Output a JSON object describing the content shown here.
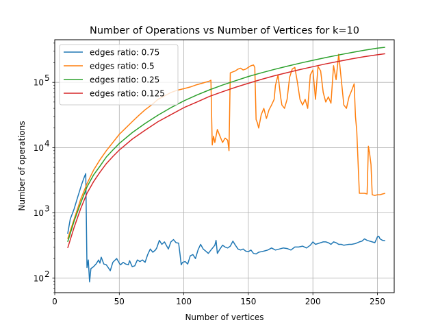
{
  "chart_data": {
    "type": "line",
    "title": "Number of Operations vs Number of Vertices for k=10",
    "xlabel": "Number of vertices",
    "ylabel": "Number of operations",
    "xlim": [
      0,
      263
    ],
    "ylim": [
      60,
      450000
    ],
    "yscale": "log",
    "grid": true,
    "legend_position": "top-left",
    "x_ticks": [
      0,
      50,
      100,
      150,
      200,
      250
    ],
    "x_tick_labels": [
      "0",
      "50",
      "100",
      "150",
      "200",
      "250"
    ],
    "y_ticks": [
      100,
      1000,
      10000,
      100000
    ],
    "y_tick_labels": [
      "10",
      "10",
      "10",
      "10"
    ],
    "y_tick_exponents": [
      "2",
      "3",
      "4",
      "5"
    ],
    "series": [
      {
        "name": "edges ratio: 0.75",
        "color": "#1f77b4",
        "points": [
          [
            10,
            480
          ],
          [
            12,
            800
          ],
          [
            15,
            1150
          ],
          [
            18,
            1800
          ],
          [
            21,
            2800
          ],
          [
            23,
            3600
          ],
          [
            24,
            4000
          ],
          [
            25,
            145
          ],
          [
            26,
            190
          ],
          [
            27,
            88
          ],
          [
            28,
            140
          ],
          [
            30,
            150
          ],
          [
            32,
            165
          ],
          [
            34,
            190
          ],
          [
            35,
            170
          ],
          [
            36,
            210
          ],
          [
            38,
            165
          ],
          [
            40,
            160
          ],
          [
            42,
            140
          ],
          [
            43,
            130
          ],
          [
            45,
            175
          ],
          [
            48,
            200
          ],
          [
            50,
            170
          ],
          [
            51,
            160
          ],
          [
            53,
            175
          ],
          [
            55,
            165
          ],
          [
            57,
            160
          ],
          [
            58,
            185
          ],
          [
            60,
            150
          ],
          [
            62,
            155
          ],
          [
            64,
            190
          ],
          [
            66,
            180
          ],
          [
            68,
            190
          ],
          [
            70,
            175
          ],
          [
            72,
            230
          ],
          [
            74,
            280
          ],
          [
            76,
            250
          ],
          [
            78,
            270
          ],
          [
            79,
            290
          ],
          [
            81,
            380
          ],
          [
            83,
            330
          ],
          [
            85,
            360
          ],
          [
            88,
            280
          ],
          [
            90,
            360
          ],
          [
            92,
            390
          ],
          [
            94,
            350
          ],
          [
            96,
            345
          ],
          [
            97,
            240
          ],
          [
            98,
            160
          ],
          [
            99,
            175
          ],
          [
            101,
            180
          ],
          [
            103,
            165
          ],
          [
            105,
            220
          ],
          [
            107,
            230
          ],
          [
            109,
            200
          ],
          [
            111,
            270
          ],
          [
            113,
            330
          ],
          [
            115,
            280
          ],
          [
            117,
            260
          ],
          [
            119,
            240
          ],
          [
            121,
            270
          ],
          [
            124,
            320
          ],
          [
            125,
            380
          ],
          [
            126,
            240
          ],
          [
            128,
            280
          ],
          [
            130,
            320
          ],
          [
            132,
            300
          ],
          [
            134,
            290
          ],
          [
            136,
            310
          ],
          [
            138,
            370
          ],
          [
            140,
            320
          ],
          [
            142,
            280
          ],
          [
            144,
            270
          ],
          [
            146,
            280
          ],
          [
            148,
            260
          ],
          [
            150,
            255
          ],
          [
            152,
            270
          ],
          [
            154,
            240
          ],
          [
            156,
            235
          ],
          [
            158,
            250
          ],
          [
            160,
            255
          ],
          [
            162,
            260
          ],
          [
            165,
            270
          ],
          [
            168,
            290
          ],
          [
            171,
            270
          ],
          [
            174,
            280
          ],
          [
            177,
            290
          ],
          [
            180,
            285
          ],
          [
            183,
            270
          ],
          [
            186,
            300
          ],
          [
            189,
            300
          ],
          [
            192,
            310
          ],
          [
            195,
            290
          ],
          [
            198,
            320
          ],
          [
            200,
            360
          ],
          [
            202,
            330
          ],
          [
            204,
            340
          ],
          [
            206,
            350
          ],
          [
            208,
            360
          ],
          [
            210,
            360
          ],
          [
            212,
            350
          ],
          [
            214,
            330
          ],
          [
            216,
            360
          ],
          [
            218,
            350
          ],
          [
            220,
            330
          ],
          [
            222,
            330
          ],
          [
            224,
            320
          ],
          [
            226,
            325
          ],
          [
            228,
            330
          ],
          [
            230,
            330
          ],
          [
            233,
            340
          ],
          [
            236,
            360
          ],
          [
            238,
            370
          ],
          [
            240,
            400
          ],
          [
            242,
            380
          ],
          [
            244,
            370
          ],
          [
            246,
            360
          ],
          [
            248,
            350
          ],
          [
            250,
            430
          ],
          [
            251,
            440
          ],
          [
            252,
            400
          ],
          [
            254,
            380
          ],
          [
            256,
            375
          ]
        ]
      },
      {
        "name": "edges ratio: 0.5",
        "color": "#ff7f0e",
        "points": [
          [
            10,
            400
          ],
          [
            15,
            800
          ],
          [
            20,
            1600
          ],
          [
            25,
            2800
          ],
          [
            30,
            4500
          ],
          [
            35,
            6500
          ],
          [
            40,
            9000
          ],
          [
            45,
            12000
          ],
          [
            50,
            16000
          ],
          [
            55,
            20000
          ],
          [
            60,
            25000
          ],
          [
            65,
            31000
          ],
          [
            70,
            38000
          ],
          [
            75,
            45000
          ],
          [
            80,
            55000
          ],
          [
            85,
            62000
          ],
          [
            90,
            70000
          ],
          [
            95,
            76000
          ],
          [
            100,
            80000
          ],
          [
            105,
            85000
          ],
          [
            110,
            92000
          ],
          [
            115,
            98000
          ],
          [
            120,
            105000
          ],
          [
            121,
            108000
          ],
          [
            122,
            11000
          ],
          [
            123,
            15000
          ],
          [
            124,
            12000
          ],
          [
            126,
            19000
          ],
          [
            128,
            15000
          ],
          [
            130,
            12000
          ],
          [
            132,
            14000
          ],
          [
            134,
            13000
          ],
          [
            135,
            9000
          ],
          [
            136,
            140000
          ],
          [
            138,
            145000
          ],
          [
            140,
            150000
          ],
          [
            142,
            160000
          ],
          [
            144,
            165000
          ],
          [
            146,
            155000
          ],
          [
            148,
            160000
          ],
          [
            150,
            170000
          ],
          [
            152,
            180000
          ],
          [
            154,
            185000
          ],
          [
            155,
            170000
          ],
          [
            156,
            27000
          ],
          [
            157,
            24000
          ],
          [
            158,
            20000
          ],
          [
            160,
            32000
          ],
          [
            162,
            40000
          ],
          [
            164,
            28000
          ],
          [
            166,
            38000
          ],
          [
            168,
            45000
          ],
          [
            170,
            55000
          ],
          [
            171,
            90000
          ],
          [
            173,
            130000
          ],
          [
            175,
            60000
          ],
          [
            176,
            45000
          ],
          [
            178,
            40000
          ],
          [
            180,
            55000
          ],
          [
            182,
            120000
          ],
          [
            184,
            160000
          ],
          [
            186,
            170000
          ],
          [
            188,
            100000
          ],
          [
            190,
            55000
          ],
          [
            192,
            45000
          ],
          [
            194,
            55000
          ],
          [
            196,
            40000
          ],
          [
            198,
            130000
          ],
          [
            200,
            155000
          ],
          [
            202,
            55000
          ],
          [
            204,
            175000
          ],
          [
            206,
            150000
          ],
          [
            208,
            70000
          ],
          [
            210,
            50000
          ],
          [
            212,
            60000
          ],
          [
            214,
            48000
          ],
          [
            216,
            180000
          ],
          [
            218,
            110000
          ],
          [
            220,
            270000
          ],
          [
            222,
            110000
          ],
          [
            224,
            45000
          ],
          [
            226,
            40000
          ],
          [
            228,
            60000
          ],
          [
            230,
            75000
          ],
          [
            232,
            95000
          ],
          [
            233,
            30000
          ],
          [
            234,
            18000
          ],
          [
            236,
            2000
          ],
          [
            238,
            2000
          ],
          [
            240,
            2000
          ],
          [
            242,
            1950
          ],
          [
            243,
            10500
          ],
          [
            244,
            8000
          ],
          [
            245,
            5500
          ],
          [
            246,
            1900
          ],
          [
            248,
            1850
          ],
          [
            250,
            1900
          ],
          [
            252,
            1900
          ],
          [
            254,
            1950
          ],
          [
            256,
            2000
          ]
        ]
      },
      {
        "name": "edges ratio: 0.25",
        "color": "#2ca02c",
        "points": [
          [
            10,
            360
          ],
          [
            15,
            750
          ],
          [
            20,
            1400
          ],
          [
            25,
            2500
          ],
          [
            30,
            3800
          ],
          [
            35,
            5200
          ],
          [
            40,
            7200
          ],
          [
            45,
            9200
          ],
          [
            50,
            11600
          ],
          [
            60,
            17000
          ],
          [
            70,
            23500
          ],
          [
            80,
            31500
          ],
          [
            90,
            41000
          ],
          [
            100,
            52000
          ],
          [
            110,
            64000
          ],
          [
            120,
            77000
          ],
          [
            130,
            91000
          ],
          [
            140,
            106000
          ],
          [
            150,
            123000
          ],
          [
            160,
            140000
          ],
          [
            170,
            158000
          ],
          [
            180,
            177000
          ],
          [
            190,
            197000
          ],
          [
            200,
            218000
          ],
          [
            210,
            240000
          ],
          [
            220,
            263000
          ],
          [
            230,
            287000
          ],
          [
            240,
            311000
          ],
          [
            250,
            334000
          ],
          [
            256,
            345000
          ]
        ]
      },
      {
        "name": "edges ratio: 0.125",
        "color": "#d62728",
        "points": [
          [
            10,
            290
          ],
          [
            15,
            600
          ],
          [
            20,
            1150
          ],
          [
            25,
            2000
          ],
          [
            30,
            3000
          ],
          [
            35,
            4200
          ],
          [
            40,
            5700
          ],
          [
            45,
            7300
          ],
          [
            50,
            9200
          ],
          [
            60,
            13500
          ],
          [
            70,
            18500
          ],
          [
            80,
            25000
          ],
          [
            90,
            32000
          ],
          [
            100,
            41000
          ],
          [
            110,
            50000
          ],
          [
            120,
            61000
          ],
          [
            130,
            72000
          ],
          [
            140,
            84000
          ],
          [
            150,
            97000
          ],
          [
            160,
            111000
          ],
          [
            170,
            126000
          ],
          [
            180,
            141000
          ],
          [
            190,
            157000
          ],
          [
            200,
            174000
          ],
          [
            210,
            192000
          ],
          [
            220,
            210000
          ],
          [
            230,
            229000
          ],
          [
            240,
            248000
          ],
          [
            250,
            265000
          ],
          [
            256,
            275000
          ]
        ]
      }
    ]
  }
}
